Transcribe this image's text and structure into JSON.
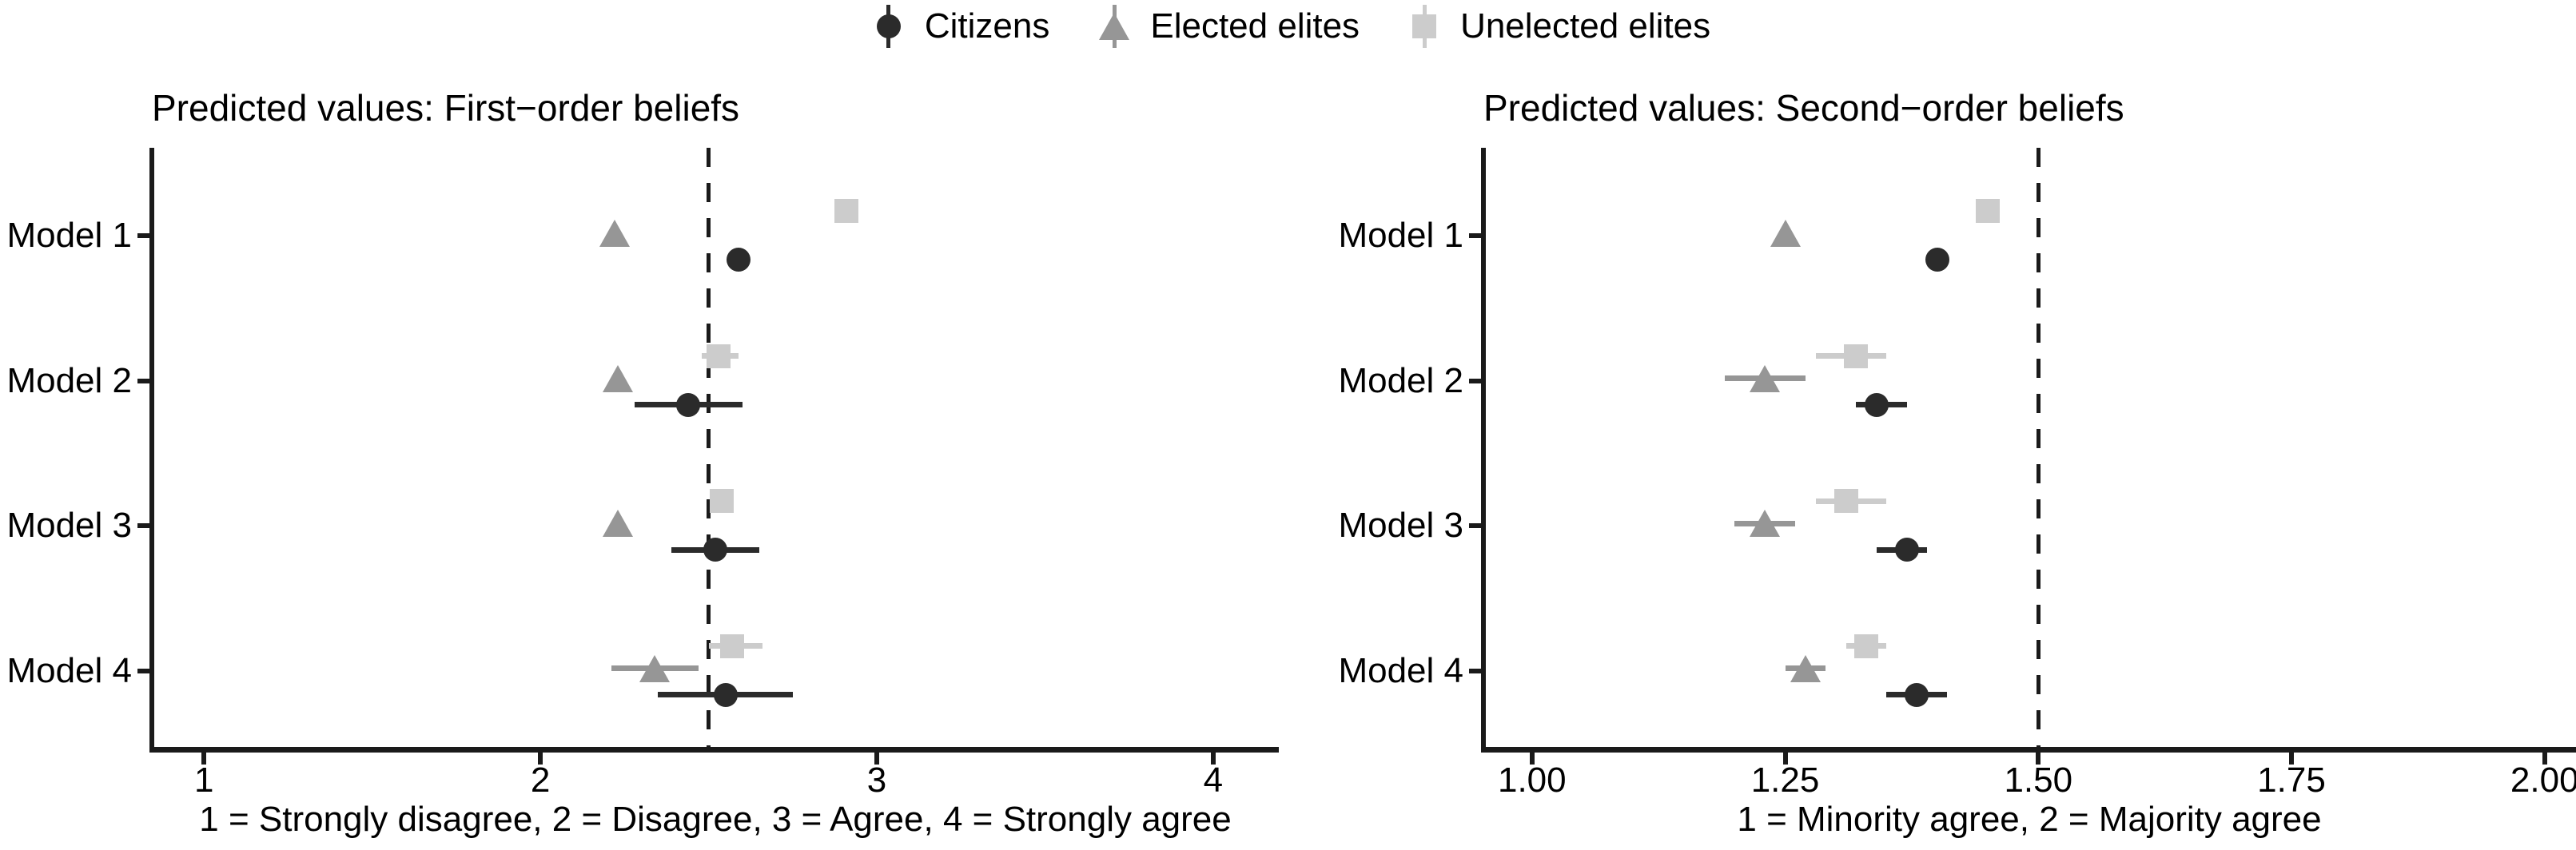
{
  "legend": {
    "items": [
      {
        "label": "Citizens",
        "marker": "circle",
        "color": "#2b2b2b"
      },
      {
        "label": "Elected elites",
        "marker": "triangle",
        "color": "#969696"
      },
      {
        "label": "Unelected elites",
        "marker": "square",
        "color": "#cccccc"
      }
    ]
  },
  "chart_data": [
    {
      "type": "scatter",
      "title": "Predicted values: First−order beliefs",
      "xlabel": "1 = Strongly disagree, 2 = Disagree, 3 = Agree, 4 = Strongly agree",
      "categories": [
        "Model 1",
        "Model 2",
        "Model 3",
        "Model 4"
      ],
      "xticks": [
        {
          "v": 1,
          "label": "1"
        },
        {
          "v": 2,
          "label": "2"
        },
        {
          "v": 3,
          "label": "3"
        },
        {
          "v": 4,
          "label": "4"
        }
      ],
      "xlim": [
        0.845,
        4.195
      ],
      "refline": 2.5,
      "grid": false,
      "legend_position": "top",
      "series": [
        {
          "name": "Unelected elites",
          "marker": "square",
          "color": "#cccccc",
          "values": [
            {
              "x": 2.91,
              "lo": null,
              "hi": null
            },
            {
              "x": 2.53,
              "lo": 2.48,
              "hi": 2.59
            },
            {
              "x": 2.54,
              "lo": null,
              "hi": null
            },
            {
              "x": 2.57,
              "lo": 2.5,
              "hi": 2.66
            }
          ]
        },
        {
          "name": "Elected elites",
          "marker": "triangle",
          "color": "#969696",
          "values": [
            {
              "x": 2.22,
              "lo": null,
              "hi": null
            },
            {
              "x": 2.23,
              "lo": null,
              "hi": null
            },
            {
              "x": 2.23,
              "lo": null,
              "hi": null
            },
            {
              "x": 2.34,
              "lo": 2.21,
              "hi": 2.47
            }
          ]
        },
        {
          "name": "Citizens",
          "marker": "circle",
          "color": "#2b2b2b",
          "values": [
            {
              "x": 2.59,
              "lo": null,
              "hi": null
            },
            {
              "x": 2.44,
              "lo": 2.28,
              "hi": 2.6
            },
            {
              "x": 2.52,
              "lo": 2.39,
              "hi": 2.65
            },
            {
              "x": 2.55,
              "lo": 2.35,
              "hi": 2.75
            }
          ]
        }
      ]
    },
    {
      "type": "scatter",
      "title": "Predicted values: Second−order beliefs",
      "xlabel": "1 = Minority agree, 2 = Majority agree",
      "categories": [
        "Model 1",
        "Model 2",
        "Model 3",
        "Model 4"
      ],
      "xticks": [
        {
          "v": 1.0,
          "label": "1.00"
        },
        {
          "v": 1.25,
          "label": "1.25"
        },
        {
          "v": 1.5,
          "label": "1.50"
        },
        {
          "v": 1.75,
          "label": "1.75"
        },
        {
          "v": 2.0,
          "label": "2.00"
        }
      ],
      "xlim": [
        0.952,
        2.031
      ],
      "refline": 1.5,
      "grid": false,
      "legend_position": "top",
      "series": [
        {
          "name": "Unelected elites",
          "marker": "square",
          "color": "#cccccc",
          "values": [
            {
              "x": 1.45,
              "lo": null,
              "hi": null
            },
            {
              "x": 1.32,
              "lo": 1.28,
              "hi": 1.35
            },
            {
              "x": 1.31,
              "lo": 1.28,
              "hi": 1.35
            },
            {
              "x": 1.33,
              "lo": 1.31,
              "hi": 1.35
            }
          ]
        },
        {
          "name": "Elected elites",
          "marker": "triangle",
          "color": "#969696",
          "values": [
            {
              "x": 1.25,
              "lo": null,
              "hi": null
            },
            {
              "x": 1.23,
              "lo": 1.19,
              "hi": 1.27
            },
            {
              "x": 1.23,
              "lo": 1.2,
              "hi": 1.26
            },
            {
              "x": 1.27,
              "lo": 1.25,
              "hi": 1.29
            }
          ]
        },
        {
          "name": "Citizens",
          "marker": "circle",
          "color": "#2b2b2b",
          "values": [
            {
              "x": 1.4,
              "lo": null,
              "hi": null
            },
            {
              "x": 1.34,
              "lo": 1.32,
              "hi": 1.37
            },
            {
              "x": 1.37,
              "lo": 1.34,
              "hi": 1.39
            },
            {
              "x": 1.38,
              "lo": 1.35,
              "hi": 1.41
            }
          ]
        }
      ]
    }
  ]
}
